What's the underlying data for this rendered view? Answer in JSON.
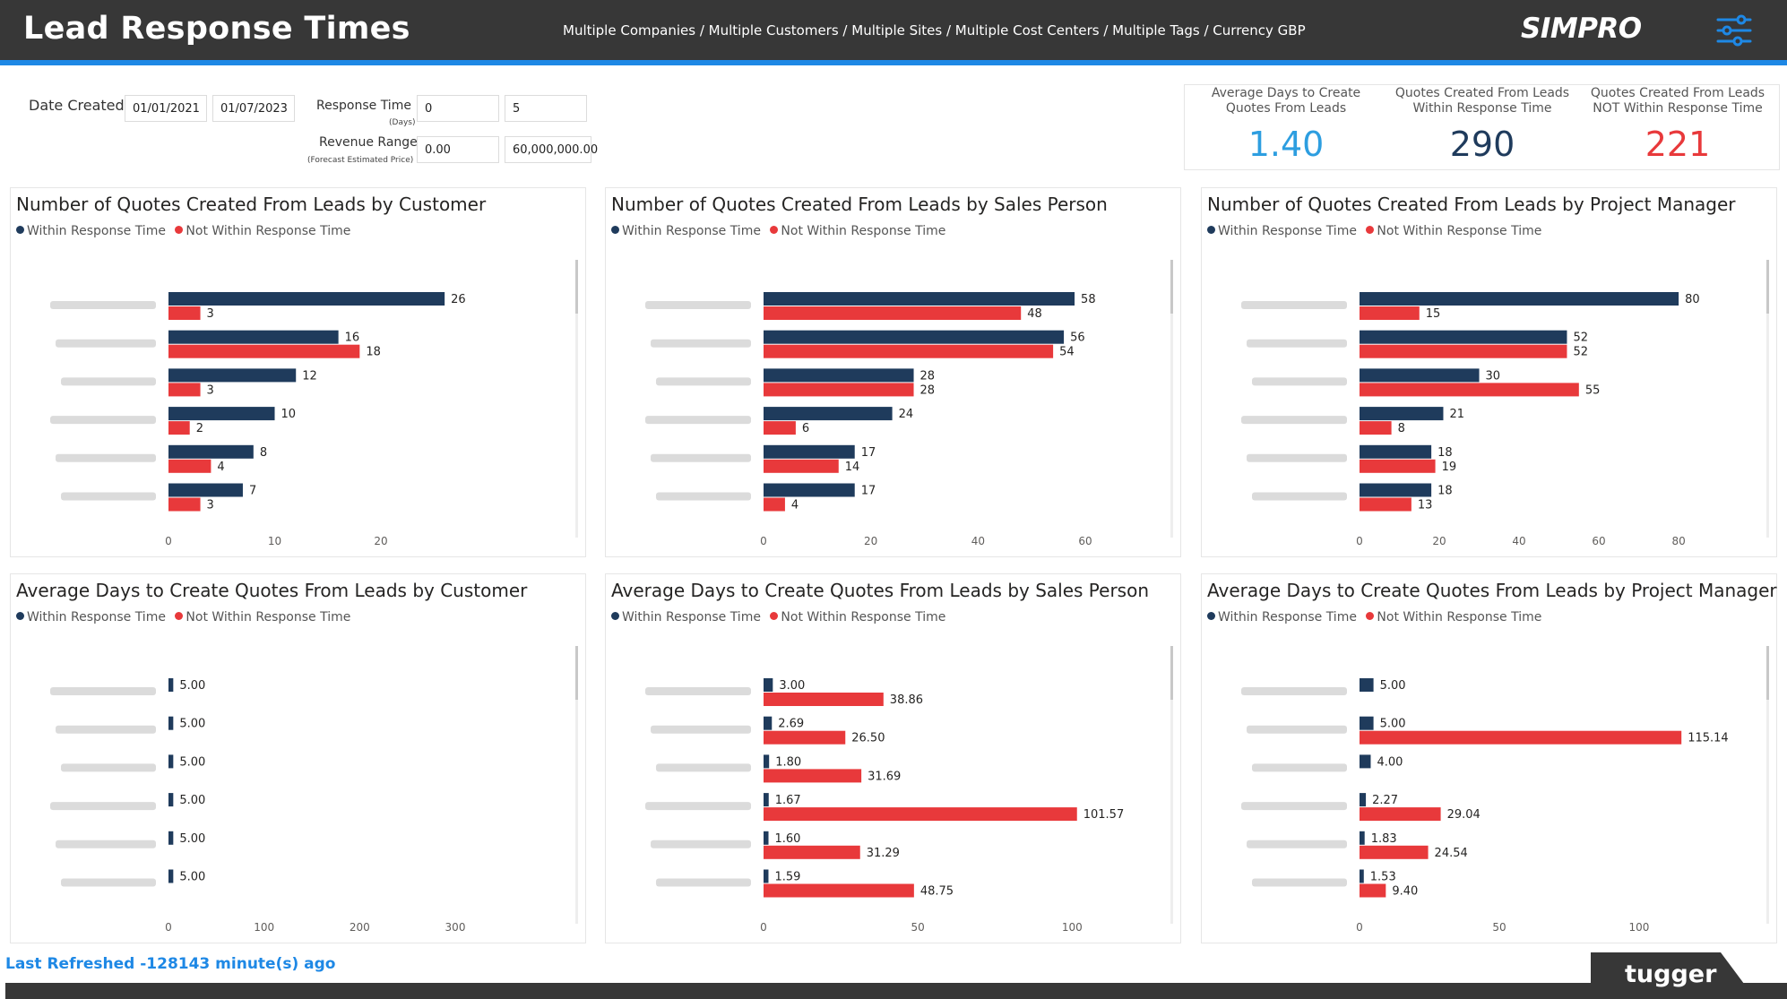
{
  "header": {
    "title": "Lead Response Times",
    "subtitle": "Multiple Companies / Multiple Customers / Multiple Sites / Multiple Cost Centers / Multiple Tags / Currency GBP",
    "logo": "SIMPRO",
    "menu_icon": "sliders-icon"
  },
  "filters": {
    "date_created_label": "Date Created",
    "date_from": "01/01/2021",
    "date_to": "01/07/2023",
    "response_time_label": "Response Time",
    "response_time_sub": "(Days)",
    "response_min": "0",
    "response_max": "5",
    "revenue_label": "Revenue Range",
    "revenue_sub": "(Forecast Estimated Price)",
    "revenue_min": "0.00",
    "revenue_max": "60,000,000.00"
  },
  "kpis": [
    {
      "caption_l1": "Average Days to Create",
      "caption_l2": "Quotes From Leads",
      "value": "1.40",
      "color": "#2d9ee0"
    },
    {
      "caption_l1": "Quotes Created From Leads",
      "caption_l2": "Within Response Time",
      "value": "290",
      "color": "#1f3b5c"
    },
    {
      "caption_l1": "Quotes Created From Leads",
      "caption_l2": "NOT Within Response Time",
      "value": "221",
      "color": "#e8393b"
    }
  ],
  "legend": {
    "within": "Within Response Time",
    "not_within": "Not Within Response Time"
  },
  "colors": {
    "within": "#1f3b5c",
    "not_within": "#e8393b"
  },
  "charts": [
    {
      "title": "Number of Quotes Created From Leads by Customer",
      "xlim": [
        0,
        27
      ],
      "ticks": [
        0,
        10,
        20
      ],
      "decimals": 0
    },
    {
      "title": "Number of Quotes Created From Leads by Sales Person",
      "xlim": [
        0,
        61
      ],
      "ticks": [
        0,
        20,
        40,
        60
      ],
      "decimals": 0
    },
    {
      "title": "Number of Quotes Created From Leads by Project Manager",
      "xlim": [
        0,
        82
      ],
      "ticks": [
        0,
        20,
        40,
        60,
        80
      ],
      "decimals": 0
    },
    {
      "title": "Average Days to Create Quotes From Leads by Customer",
      "xlim": [
        0,
        300
      ],
      "ticks": [
        0,
        100,
        200,
        300
      ],
      "decimals": 2
    },
    {
      "title": "Average Days to Create Quotes From Leads by Sales Person",
      "xlim": [
        0,
        106
      ],
      "ticks": [
        0,
        50,
        100
      ],
      "decimals": 2
    },
    {
      "title": "Average Days to Create Quotes From Leads by Project Manager",
      "xlim": [
        0,
        117
      ],
      "ticks": [
        0,
        50,
        100
      ],
      "decimals": 2
    }
  ],
  "chart_data": [
    {
      "type": "bar",
      "orientation": "horizontal",
      "legend": "top-left",
      "xlim": [
        0,
        27
      ],
      "series": [
        {
          "name": "Within Response Time",
          "values": [
            26,
            16,
            12,
            10,
            8,
            7
          ]
        },
        {
          "name": "Not Within Response Time",
          "values": [
            3,
            18,
            3,
            2,
            4,
            3
          ]
        }
      ]
    },
    {
      "type": "bar",
      "orientation": "horizontal",
      "legend": "top-left",
      "xlim": [
        0,
        61
      ],
      "series": [
        {
          "name": "Within Response Time",
          "values": [
            58,
            56,
            28,
            24,
            17,
            17
          ]
        },
        {
          "name": "Not Within Response Time",
          "values": [
            48,
            54,
            28,
            6,
            14,
            4
          ]
        }
      ]
    },
    {
      "type": "bar",
      "orientation": "horizontal",
      "legend": "top-left",
      "xlim": [
        0,
        82
      ],
      "series": [
        {
          "name": "Within Response Time",
          "values": [
            80,
            52,
            30,
            21,
            18,
            18
          ]
        },
        {
          "name": "Not Within Response Time",
          "values": [
            15,
            52,
            55,
            8,
            19,
            13
          ]
        }
      ]
    },
    {
      "type": "bar",
      "orientation": "horizontal",
      "legend": "top-left",
      "xlim": [
        0,
        300
      ],
      "series": [
        {
          "name": "Within Response Time",
          "values": [
            5.0,
            5.0,
            5.0,
            5.0,
            5.0,
            5.0
          ]
        },
        {
          "name": "Not Within Response Time",
          "values": [
            null,
            null,
            null,
            null,
            null,
            null
          ]
        }
      ]
    },
    {
      "type": "bar",
      "orientation": "horizontal",
      "legend": "top-left",
      "xlim": [
        0,
        106
      ],
      "series": [
        {
          "name": "Within Response Time",
          "values": [
            3.0,
            2.69,
            1.8,
            1.67,
            1.6,
            1.59
          ]
        },
        {
          "name": "Not Within Response Time",
          "values": [
            38.86,
            26.5,
            31.69,
            101.57,
            31.29,
            48.75
          ]
        }
      ]
    },
    {
      "type": "bar",
      "orientation": "horizontal",
      "legend": "top-left",
      "xlim": [
        0,
        117
      ],
      "series": [
        {
          "name": "Within Response Time",
          "values": [
            5.0,
            5.0,
            4.0,
            2.27,
            1.83,
            1.53
          ]
        },
        {
          "name": "Not Within Response Time",
          "values": [
            null,
            115.14,
            null,
            29.04,
            24.54,
            9.4
          ]
        }
      ]
    }
  ],
  "footer": {
    "refreshed": "Last Refreshed -128143 minute(s) ago",
    "brand": "tugger"
  }
}
